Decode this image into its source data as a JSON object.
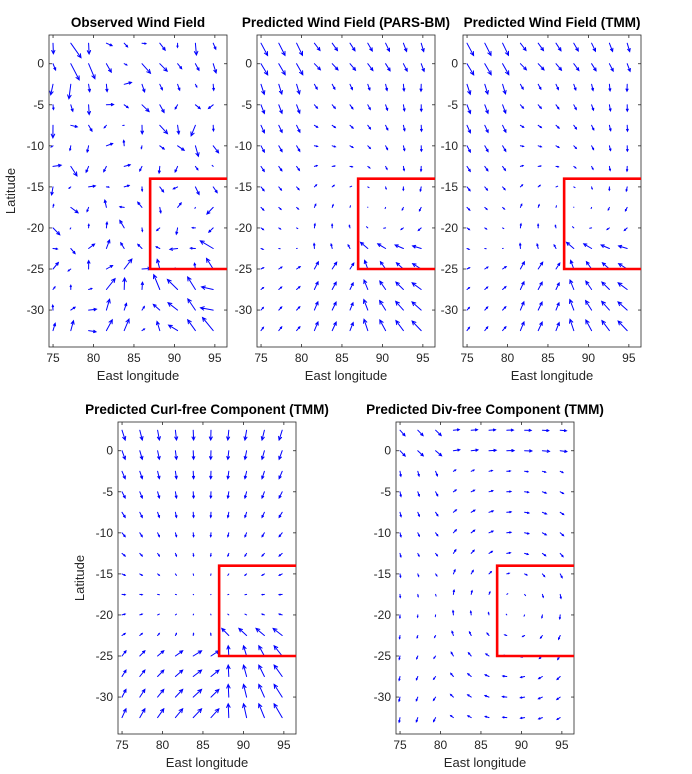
{
  "chart_data": [
    {
      "type": "quiver",
      "title": "Observed Wind Field",
      "xlabel": "East longitude",
      "ylabel": "Latitude",
      "xlim": [
        74.5,
        96.5
      ],
      "ylim": [
        -34.5,
        3.5
      ],
      "xticks": [
        75,
        80,
        85,
        90,
        95
      ],
      "yticks": [
        0,
        -5,
        -10,
        -15,
        -20,
        -25,
        -30
      ],
      "field": "observed",
      "region": {
        "lon_from": 87,
        "lat_top": -14,
        "lat_bottom": -25
      }
    },
    {
      "type": "quiver",
      "title": "Predicted Wind Field (PARS-BM)",
      "xlabel": "East longitude",
      "ylabel": "",
      "xlim": [
        74.5,
        96.5
      ],
      "ylim": [
        -34.5,
        3.5
      ],
      "xticks": [
        75,
        80,
        85,
        90,
        95
      ],
      "yticks": [
        0,
        -5,
        -10,
        -15,
        -20,
        -25,
        -30
      ],
      "field": "predicted",
      "region": {
        "lon_from": 87,
        "lat_top": -14,
        "lat_bottom": -25
      }
    },
    {
      "type": "quiver",
      "title": "Predicted Wind Field (TMM)",
      "xlabel": "East longitude",
      "ylabel": "",
      "xlim": [
        74.5,
        96.5
      ],
      "ylim": [
        -34.5,
        3.5
      ],
      "xticks": [
        75,
        80,
        85,
        90,
        95
      ],
      "yticks": [
        0,
        -5,
        -10,
        -15,
        -20,
        -25,
        -30
      ],
      "field": "predicted",
      "region": {
        "lon_from": 87,
        "lat_top": -14,
        "lat_bottom": -25
      }
    },
    {
      "type": "quiver",
      "title": "Predicted Curl-free Component (TMM)",
      "xlabel": "East longitude",
      "ylabel": "Latitude",
      "xlim": [
        74.5,
        96.5
      ],
      "ylim": [
        -34.5,
        3.5
      ],
      "xticks": [
        75,
        80,
        85,
        90,
        95
      ],
      "yticks": [
        0,
        -5,
        -10,
        -15,
        -20,
        -25,
        -30
      ],
      "field": "curlfree",
      "region": {
        "lon_from": 87,
        "lat_top": -14,
        "lat_bottom": -25
      }
    },
    {
      "type": "quiver",
      "title": "Predicted Div-free Component (TMM)",
      "xlabel": "East longitude",
      "ylabel": "",
      "xlim": [
        74.5,
        96.5
      ],
      "ylim": [
        -34.5,
        3.5
      ],
      "xticks": [
        75,
        80,
        85,
        90,
        95
      ],
      "yticks": [
        0,
        -5,
        -10,
        -15,
        -20,
        -25,
        -30
      ],
      "field": "divfree",
      "region": {
        "lon_from": 87,
        "lat_top": -14,
        "lat_bottom": -25
      }
    }
  ],
  "colors": {
    "arrow": "#0000ff",
    "region": "#ff0000",
    "axis": "#262626"
  }
}
